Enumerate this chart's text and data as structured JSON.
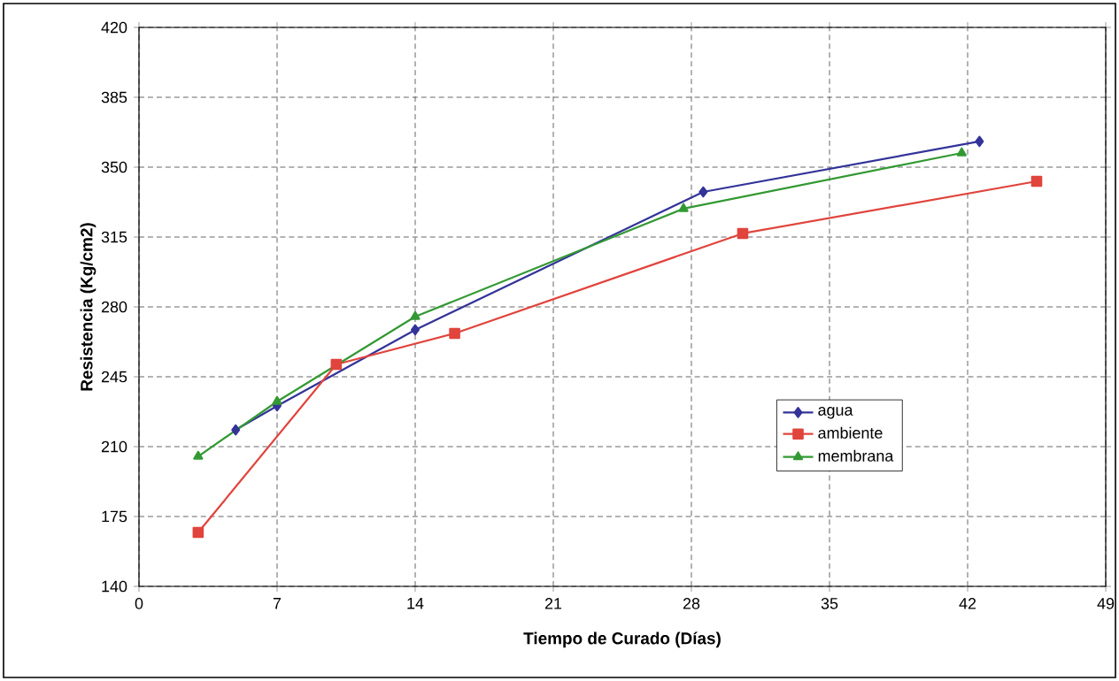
{
  "chart_data": {
    "type": "line",
    "xlabel": "Tiempo de Curado (Días)",
    "ylabel": "Resistencia (Kg/cm2)",
    "xlim": [
      0,
      49
    ],
    "xticks": [
      0,
      7,
      14,
      21,
      28,
      35,
      42,
      49
    ],
    "ylim": [
      140,
      420
    ],
    "yticks": [
      140,
      175,
      210,
      245,
      280,
      315,
      350,
      385,
      420
    ],
    "grid": true,
    "legend": "right",
    "line_style": "solid",
    "series": [
      {
        "name": "agua",
        "color": "#333399",
        "marker": "diamond",
        "x": [
          4.9,
          7,
          14,
          28.6,
          42.6
        ],
        "values": [
          218.4,
          230.4,
          268.5,
          337.6,
          362.9
        ]
      },
      {
        "name": "ambiente",
        "color": "#e0443c",
        "marker": "square",
        "x": [
          3,
          10,
          16,
          30.6,
          45.5
        ],
        "values": [
          167,
          251.2,
          266.7,
          316.8,
          342.9
        ]
      },
      {
        "name": "membrana",
        "color": "#339933",
        "marker": "triangle",
        "x": [
          3,
          7,
          14,
          27.6,
          41.7
        ],
        "values": [
          205.1,
          232.6,
          275.1,
          329.2,
          357.1
        ]
      }
    ]
  }
}
